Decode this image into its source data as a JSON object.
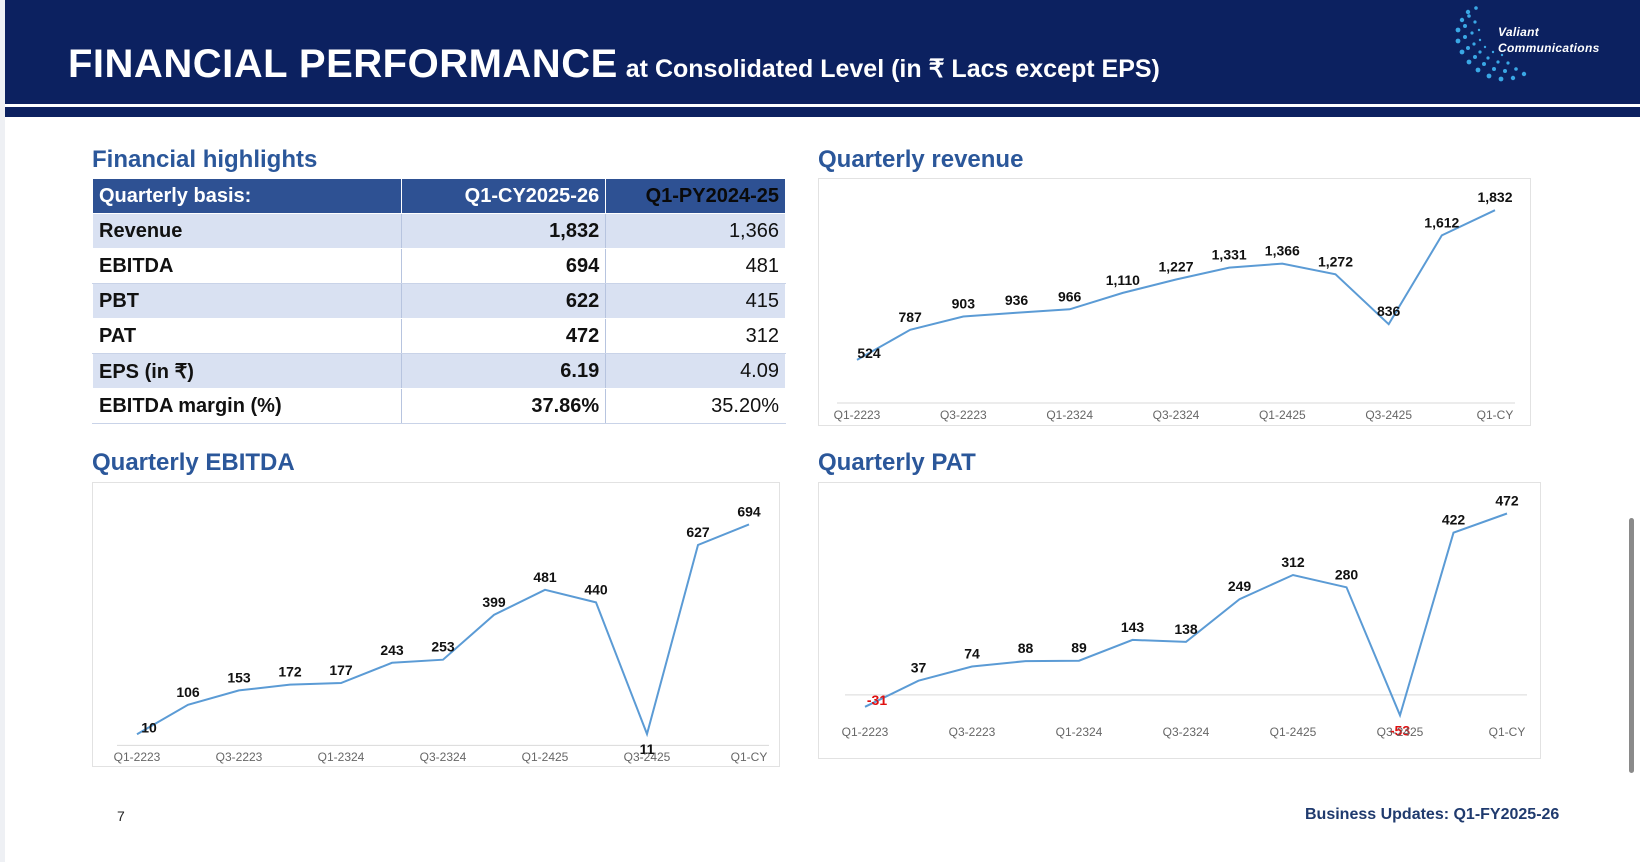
{
  "header": {
    "title_main": "FINANCIAL PERFORMANCE",
    "title_sub": "at Consolidated Level (in ₹ Lacs except EPS)",
    "logo_line1": "Valiant",
    "logo_line2": "Communications",
    "bg_color": "#0c2160"
  },
  "highlights": {
    "title": "Financial highlights",
    "columns": [
      "Quarterly basis:",
      "Q1-CY2025-26",
      "Q1-PY2024-25"
    ],
    "rows": [
      {
        "label": "Revenue",
        "cy": "1,832",
        "py": "1,366"
      },
      {
        "label": "EBITDA",
        "cy": "694",
        "py": "481"
      },
      {
        "label": "PBT",
        "cy": "622",
        "py": "415"
      },
      {
        "label": "PAT",
        "cy": "472",
        "py": "312"
      },
      {
        "label": "EPS (in ₹)",
        "cy": "6.19",
        "py": "4.09"
      },
      {
        "label": "EBITDA margin (%)",
        "cy": "37.86%",
        "py": "35.20%"
      }
    ]
  },
  "chart_titles": {
    "revenue": "Quarterly revenue",
    "ebitda": "Quarterly EBITDA",
    "pat": "Quarterly PAT"
  },
  "chart_data": [
    {
      "id": "revenue",
      "type": "line",
      "title": "Quarterly revenue",
      "x_tick_labels": [
        "Q1-2223",
        "Q3-2223",
        "Q1-2324",
        "Q3-2324",
        "Q1-2425",
        "Q3-2425",
        "Q1-CY"
      ],
      "values": [
        524,
        787,
        903,
        936,
        966,
        1110,
        1227,
        1331,
        1366,
        1272,
        836,
        1612,
        1832
      ],
      "labels": [
        "524",
        "787",
        "903",
        "936",
        "966",
        "1,110",
        "1,227",
        "1,331",
        "1,366",
        "1,272",
        "836",
        "1,612",
        "1,832"
      ],
      "ylim": [
        200,
        2000
      ],
      "color": "#5b9bd5"
    },
    {
      "id": "ebitda",
      "type": "line",
      "title": "Quarterly EBITDA",
      "x_tick_labels": [
        "Q1-2223",
        "Q3-2223",
        "Q1-2324",
        "Q3-2324",
        "Q1-2425",
        "Q3-2425",
        "Q1-CY"
      ],
      "values": [
        10,
        106,
        153,
        172,
        177,
        243,
        253,
        399,
        481,
        440,
        11,
        627,
        694
      ],
      "labels": [
        "10",
        "106",
        "153",
        "172",
        "177",
        "243",
        "253",
        "399",
        "481",
        "440",
        "11",
        "627",
        "694"
      ],
      "ylim": [
        -25,
        790
      ],
      "color": "#5b9bd5"
    },
    {
      "id": "pat",
      "type": "line",
      "title": "Quarterly PAT",
      "x_tick_labels": [
        "Q1-2223",
        "Q3-2223",
        "Q1-2324",
        "Q3-2324",
        "Q1-2425",
        "Q3-2425",
        "Q1-CY"
      ],
      "values": [
        -31,
        37,
        74,
        88,
        89,
        143,
        138,
        249,
        312,
        280,
        -53,
        422,
        472
      ],
      "labels": [
        "-31",
        "37",
        "74",
        "88",
        "89",
        "143",
        "138",
        "249",
        "312",
        "280",
        "-53",
        "422",
        "472"
      ],
      "ylim": [
        -60,
        520
      ],
      "color": "#5b9bd5"
    }
  ],
  "footer": {
    "page_number": "7",
    "note": "Business Updates: Q1-FY2025-26"
  }
}
